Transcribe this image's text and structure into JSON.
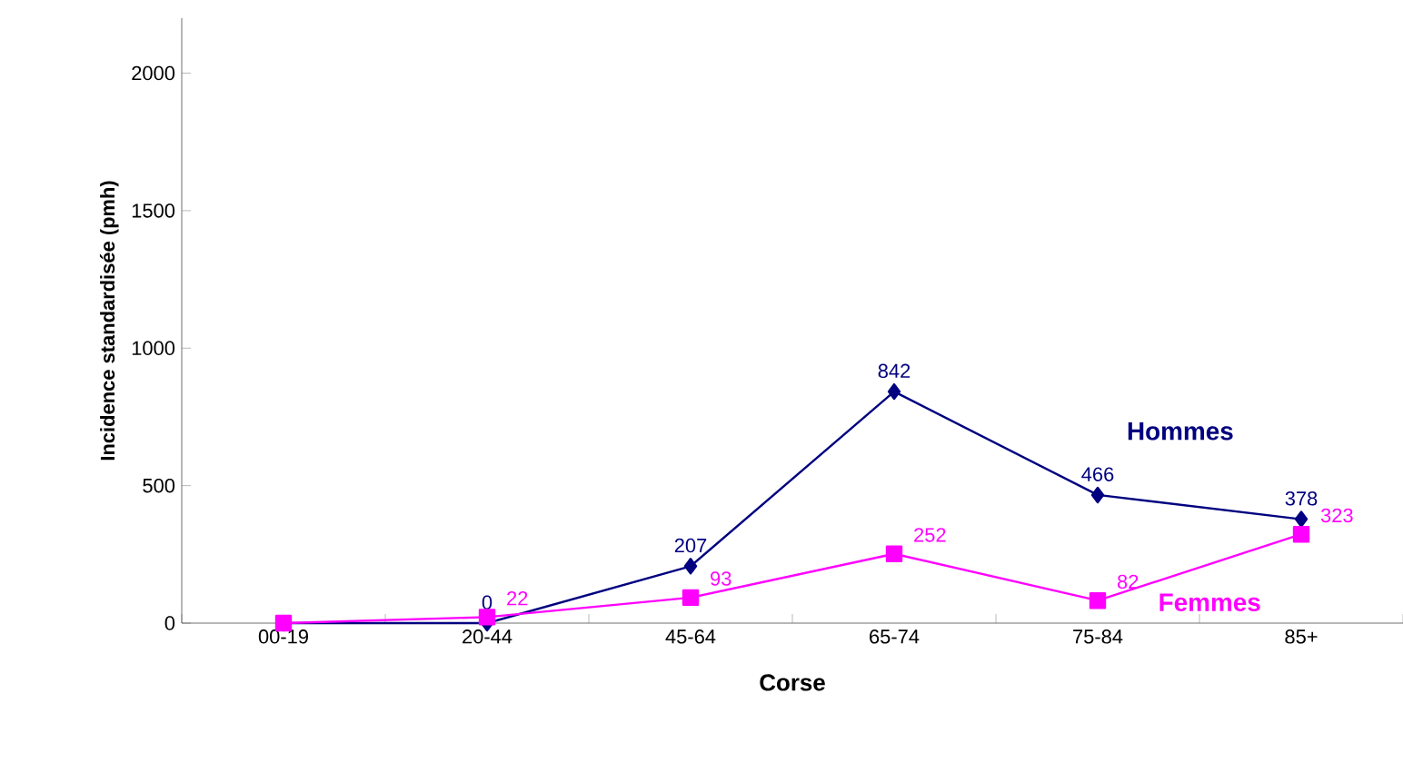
{
  "chart_data": {
    "type": "line",
    "xlabel": "Corse",
    "ylabel": "Incidence  standardisée (pmh)",
    "categories": [
      "00-19",
      "20-44",
      "45-64",
      "65-74",
      "75-84",
      "85+"
    ],
    "series": [
      {
        "name": "Hommes",
        "color": "#000080",
        "marker": "diamond",
        "values": [
          0,
          0,
          207,
          842,
          466,
          378
        ],
        "value_labels": [
          null,
          "0",
          "207",
          "842",
          "466",
          "378"
        ]
      },
      {
        "name": "Femmes",
        "color": "#ff00ff",
        "marker": "square",
        "values": [
          0,
          22,
          93,
          252,
          82,
          323
        ],
        "value_labels": [
          null,
          "22",
          "93",
          "252",
          "82",
          "323"
        ]
      }
    ],
    "ylim": [
      0,
      2200
    ],
    "yticks": [
      0,
      500,
      1000,
      1500,
      2000
    ],
    "grid": false,
    "legend": false,
    "line_style": "solid"
  }
}
